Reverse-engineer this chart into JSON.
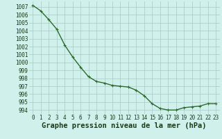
{
  "x": [
    0,
    1,
    2,
    3,
    4,
    5,
    6,
    7,
    8,
    9,
    10,
    11,
    12,
    13,
    14,
    15,
    16,
    17,
    18,
    19,
    20,
    21,
    22,
    23
  ],
  "y": [
    1007.2,
    1006.5,
    1005.4,
    1004.2,
    1002.2,
    1000.7,
    999.4,
    998.2,
    997.6,
    997.4,
    997.1,
    997.0,
    996.9,
    996.5,
    995.8,
    994.8,
    994.2,
    994.0,
    994.0,
    994.3,
    994.4,
    994.5,
    994.8,
    994.8
  ],
  "line_color": "#2d6a2d",
  "marker": "+",
  "marker_color": "#2d6a2d",
  "bg_color": "#d0f0eb",
  "grid_color": "#a8c8c4",
  "xlabel": "Graphe pression niveau de la mer (hPa)",
  "xlabel_color": "#1a3a1a",
  "tick_color": "#1a3a1a",
  "ylim": [
    993.5,
    1007.7
  ],
  "xlim": [
    -0.5,
    23.5
  ],
  "yticks": [
    994,
    995,
    996,
    997,
    998,
    999,
    1000,
    1001,
    1002,
    1003,
    1004,
    1005,
    1006,
    1007
  ],
  "xticks": [
    0,
    1,
    2,
    3,
    4,
    5,
    6,
    7,
    8,
    9,
    10,
    11,
    12,
    13,
    14,
    15,
    16,
    17,
    18,
    19,
    20,
    21,
    22,
    23
  ],
  "linewidth": 1.0,
  "markersize": 3.5,
  "xlabel_fontsize": 7.5,
  "tick_fontsize": 5.5
}
